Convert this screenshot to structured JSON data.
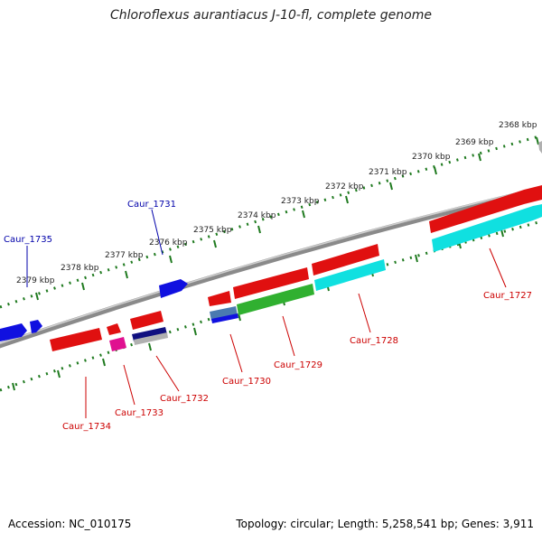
{
  "title": "Chloroflexus aurantiacus J-10-fl, complete genome",
  "accession": "Accession: NC_010175",
  "summary": "Topology: circular; Length: 5,258,541 bp; Genes: 3,911",
  "colors": {
    "backbone": "#8a8a8a",
    "tick": "#1f7a1f",
    "gene_red": "#e01010",
    "gene_blue": "#1010e0",
    "gene_cyan": "#10e0e0",
    "gene_green": "#30b030",
    "gene_pink": "#e01090",
    "gene_navy": "#101080",
    "gene_steel": "#4a7ab0",
    "gene_grey": "#b0b0b0",
    "label_red": "#cc0000",
    "label_blue": "#0000aa"
  },
  "scale_labels": [
    "2368 kbp",
    "2369 kbp",
    "2370 kbp",
    "2371 kbp",
    "2372 kbp",
    "2373 kbp",
    "2374 kbp",
    "2375 kbp",
    "2376 kbp",
    "2377 kbp",
    "2378 kbp",
    "2379 kbp"
  ],
  "gene_labels": [
    {
      "id": "Caur_1727",
      "strand": "minus"
    },
    {
      "id": "Caur_1728",
      "strand": "minus"
    },
    {
      "id": "Caur_1729",
      "strand": "minus"
    },
    {
      "id": "Caur_1730",
      "strand": "minus"
    },
    {
      "id": "Caur_1731",
      "strand": "plus"
    },
    {
      "id": "Caur_1732",
      "strand": "minus"
    },
    {
      "id": "Caur_1733",
      "strand": "minus"
    },
    {
      "id": "Caur_1734",
      "strand": "minus"
    },
    {
      "id": "Caur_1735",
      "strand": "plus"
    }
  ]
}
